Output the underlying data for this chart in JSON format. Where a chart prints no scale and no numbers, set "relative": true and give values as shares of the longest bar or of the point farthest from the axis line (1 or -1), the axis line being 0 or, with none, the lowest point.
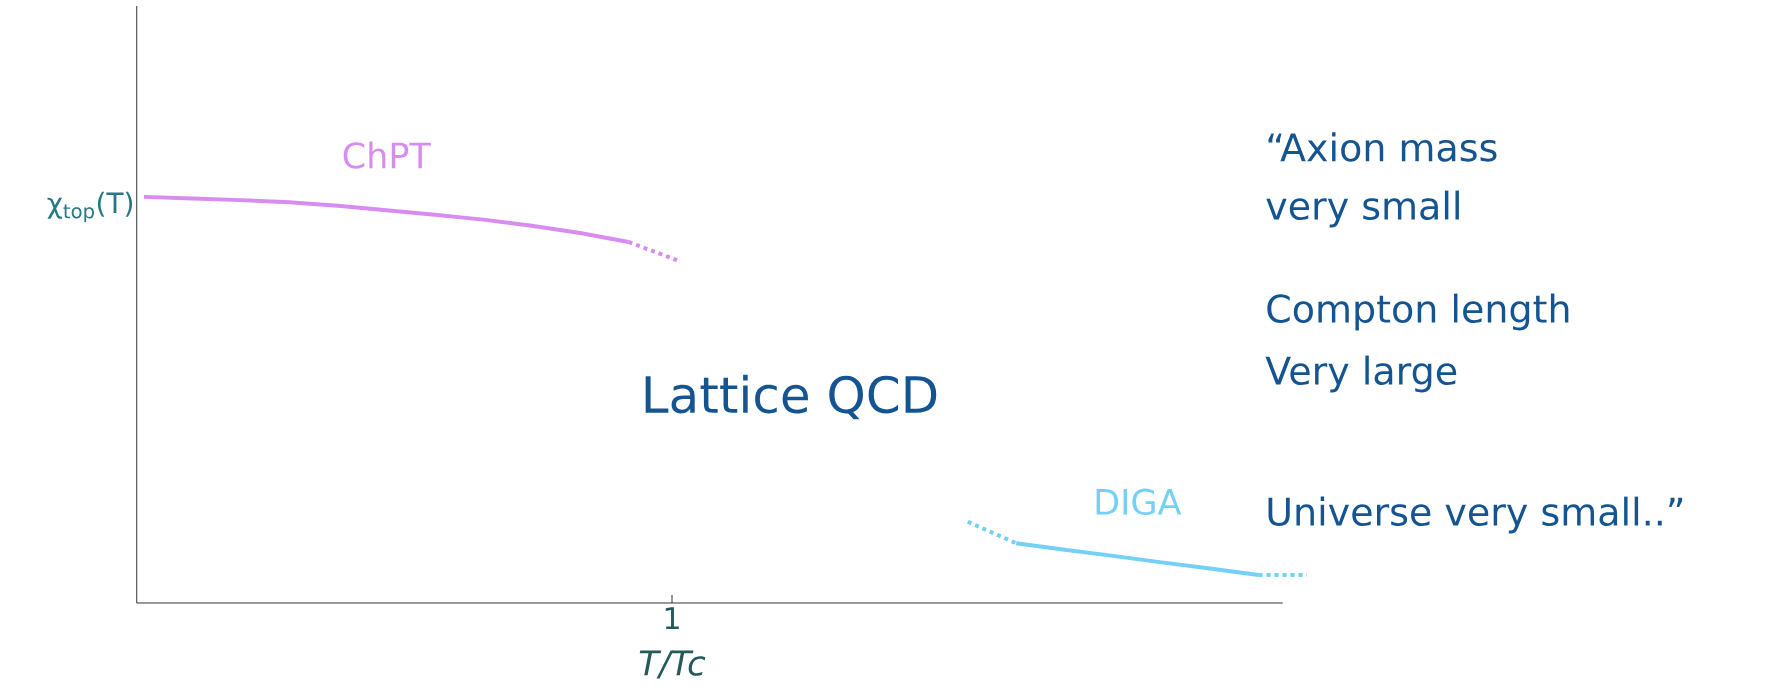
{
  "chart_data": {
    "type": "line",
    "relative": true,
    "tick_labels": false,
    "xlabel": "T/Tc",
    "ylabel": "χ$_{top}$(T)",
    "categories": [
      null,
      null,
      null,
      null,
      null,
      null,
      null,
      null,
      null,
      null,
      null,
      null,
      null,
      null,
      null,
      null,
      null,
      null,
      null,
      null,
      null,
      null,
      null,
      null,
      null
    ],
    "series": [
      {
        "name": "ChPT",
        "color": "#d98cf0",
        "line_style": "solid",
        "values": [
          1.0,
          0.996,
          0.992,
          0.987,
          0.978,
          0.967,
          0.956,
          0.944,
          0.929,
          0.911,
          0.889,
          null,
          null,
          null,
          null,
          null,
          null,
          null,
          null,
          null,
          null,
          null,
          null,
          null,
          null
        ]
      },
      {
        "color": "#d98cf0",
        "line_style": "dotted",
        "values": [
          null,
          null,
          null,
          null,
          null,
          null,
          null,
          null,
          null,
          null,
          0.889,
          0.844,
          null,
          null,
          null,
          null,
          null,
          null,
          null,
          null,
          null,
          null,
          null,
          null,
          null
        ]
      },
      {
        "color": "#73d0f7",
        "line_style": "dotted",
        "values": [
          null,
          null,
          null,
          null,
          null,
          null,
          null,
          null,
          null,
          null,
          null,
          null,
          null,
          null,
          null,
          null,
          null,
          0.2,
          0.147,
          null,
          null,
          null,
          null,
          null,
          null
        ]
      },
      {
        "name": "DIGA",
        "color": "#73d0f7",
        "line_style": "solid",
        "values": [
          null,
          null,
          null,
          null,
          null,
          null,
          null,
          null,
          null,
          null,
          null,
          null,
          null,
          null,
          null,
          null,
          null,
          null,
          0.147,
          0.131,
          0.116,
          0.1,
          0.085,
          0.069,
          null
        ]
      },
      {
        "color": "#73d0f7",
        "line_style": "dotted",
        "values": [
          null,
          null,
          null,
          null,
          null,
          null,
          null,
          null,
          null,
          null,
          null,
          null,
          null,
          null,
          null,
          null,
          null,
          null,
          null,
          null,
          null,
          null,
          null,
          0.069,
          0.069
        ]
      }
    ],
    "annotations": [
      "1",
      "Lattice QCD",
      "“Axion mass",
      "very small",
      "Compton length",
      "Very large",
      "Universe very small..”"
    ]
  }
}
